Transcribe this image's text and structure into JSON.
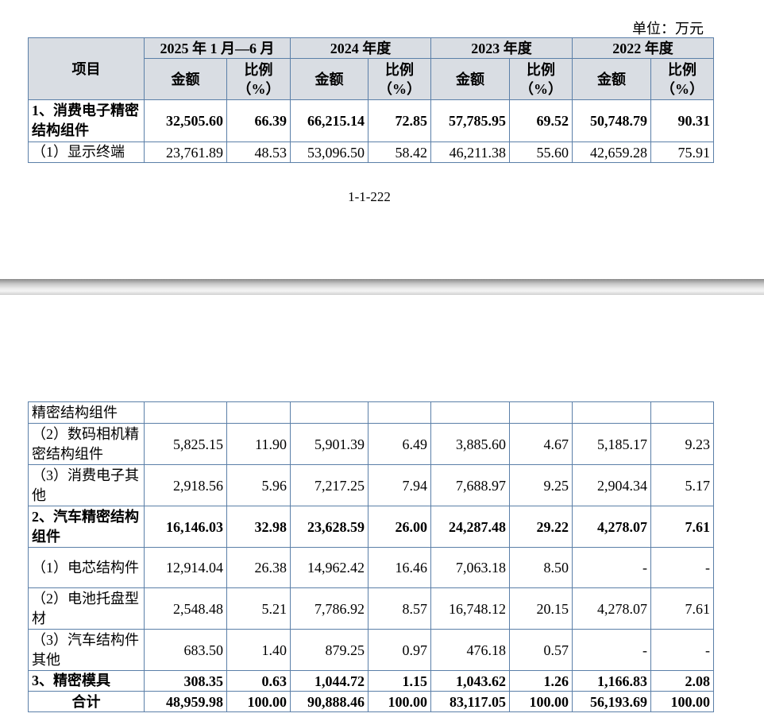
{
  "unit": "单位：万元",
  "page_number": "1-1-222",
  "header": {
    "item": "项目",
    "periods": [
      "2025 年 1 月—6 月",
      "2024 年度",
      "2023 年度",
      "2022 年度"
    ],
    "amount": "金额",
    "ratio_l1": "比例",
    "ratio_l2": "（%）"
  },
  "page1_rows": [
    {
      "label": "1、消费电子精密结构组件",
      "bold": true,
      "v": [
        "32,505.60",
        "66.39",
        "66,215.14",
        "72.85",
        "57,785.95",
        "69.52",
        "50,748.79",
        "90.31"
      ]
    },
    {
      "label": "（1）显示终端",
      "bold": false,
      "v": [
        "23,761.89",
        "48.53",
        "53,096.50",
        "58.42",
        "46,211.38",
        "55.60",
        "42,659.28",
        "75.91"
      ]
    }
  ],
  "page2_rows": [
    {
      "label": "精密结构组件",
      "bold": false,
      "v": [
        "",
        "",
        "",
        "",
        "",
        "",
        "",
        ""
      ]
    },
    {
      "label": "（2）数码相机精密结构组件",
      "bold": false,
      "v": [
        "5,825.15",
        "11.90",
        "5,901.39",
        "6.49",
        "3,885.60",
        "4.67",
        "5,185.17",
        "9.23"
      ]
    },
    {
      "label": "（3）消费电子其他",
      "bold": false,
      "v": [
        "2,918.56",
        "5.96",
        "7,217.25",
        "7.94",
        "7,688.97",
        "9.25",
        "2,904.34",
        "5.17"
      ]
    },
    {
      "label": "2、汽车精密结构组件",
      "bold": true,
      "v": [
        "16,146.03",
        "32.98",
        "23,628.59",
        "26.00",
        "24,287.48",
        "29.22",
        "4,278.07",
        "7.61"
      ]
    },
    {
      "label": "（1）电芯结构件",
      "bold": false,
      "v": [
        "12,914.04",
        "26.38",
        "14,962.42",
        "16.46",
        "7,063.18",
        "8.50",
        "-",
        "-"
      ]
    },
    {
      "label": "（2）电池托盘型材",
      "bold": false,
      "v": [
        "2,548.48",
        "5.21",
        "7,786.92",
        "8.57",
        "16,748.12",
        "20.15",
        "4,278.07",
        "7.61"
      ]
    },
    {
      "label": "（3）汽车结构件其他",
      "bold": false,
      "v": [
        "683.50",
        "1.40",
        "879.25",
        "0.97",
        "476.18",
        "0.57",
        "-",
        "-"
      ]
    },
    {
      "label": "3、精密模具",
      "bold": true,
      "v": [
        "308.35",
        "0.63",
        "1,044.72",
        "1.15",
        "1,043.62",
        "1.26",
        "1,166.83",
        "2.08"
      ]
    },
    {
      "label": "合计",
      "bold": true,
      "center": true,
      "v": [
        "48,959.98",
        "100.00",
        "90,888.46",
        "100.00",
        "83,117.05",
        "100.00",
        "56,193.69",
        "100.00"
      ]
    }
  ]
}
